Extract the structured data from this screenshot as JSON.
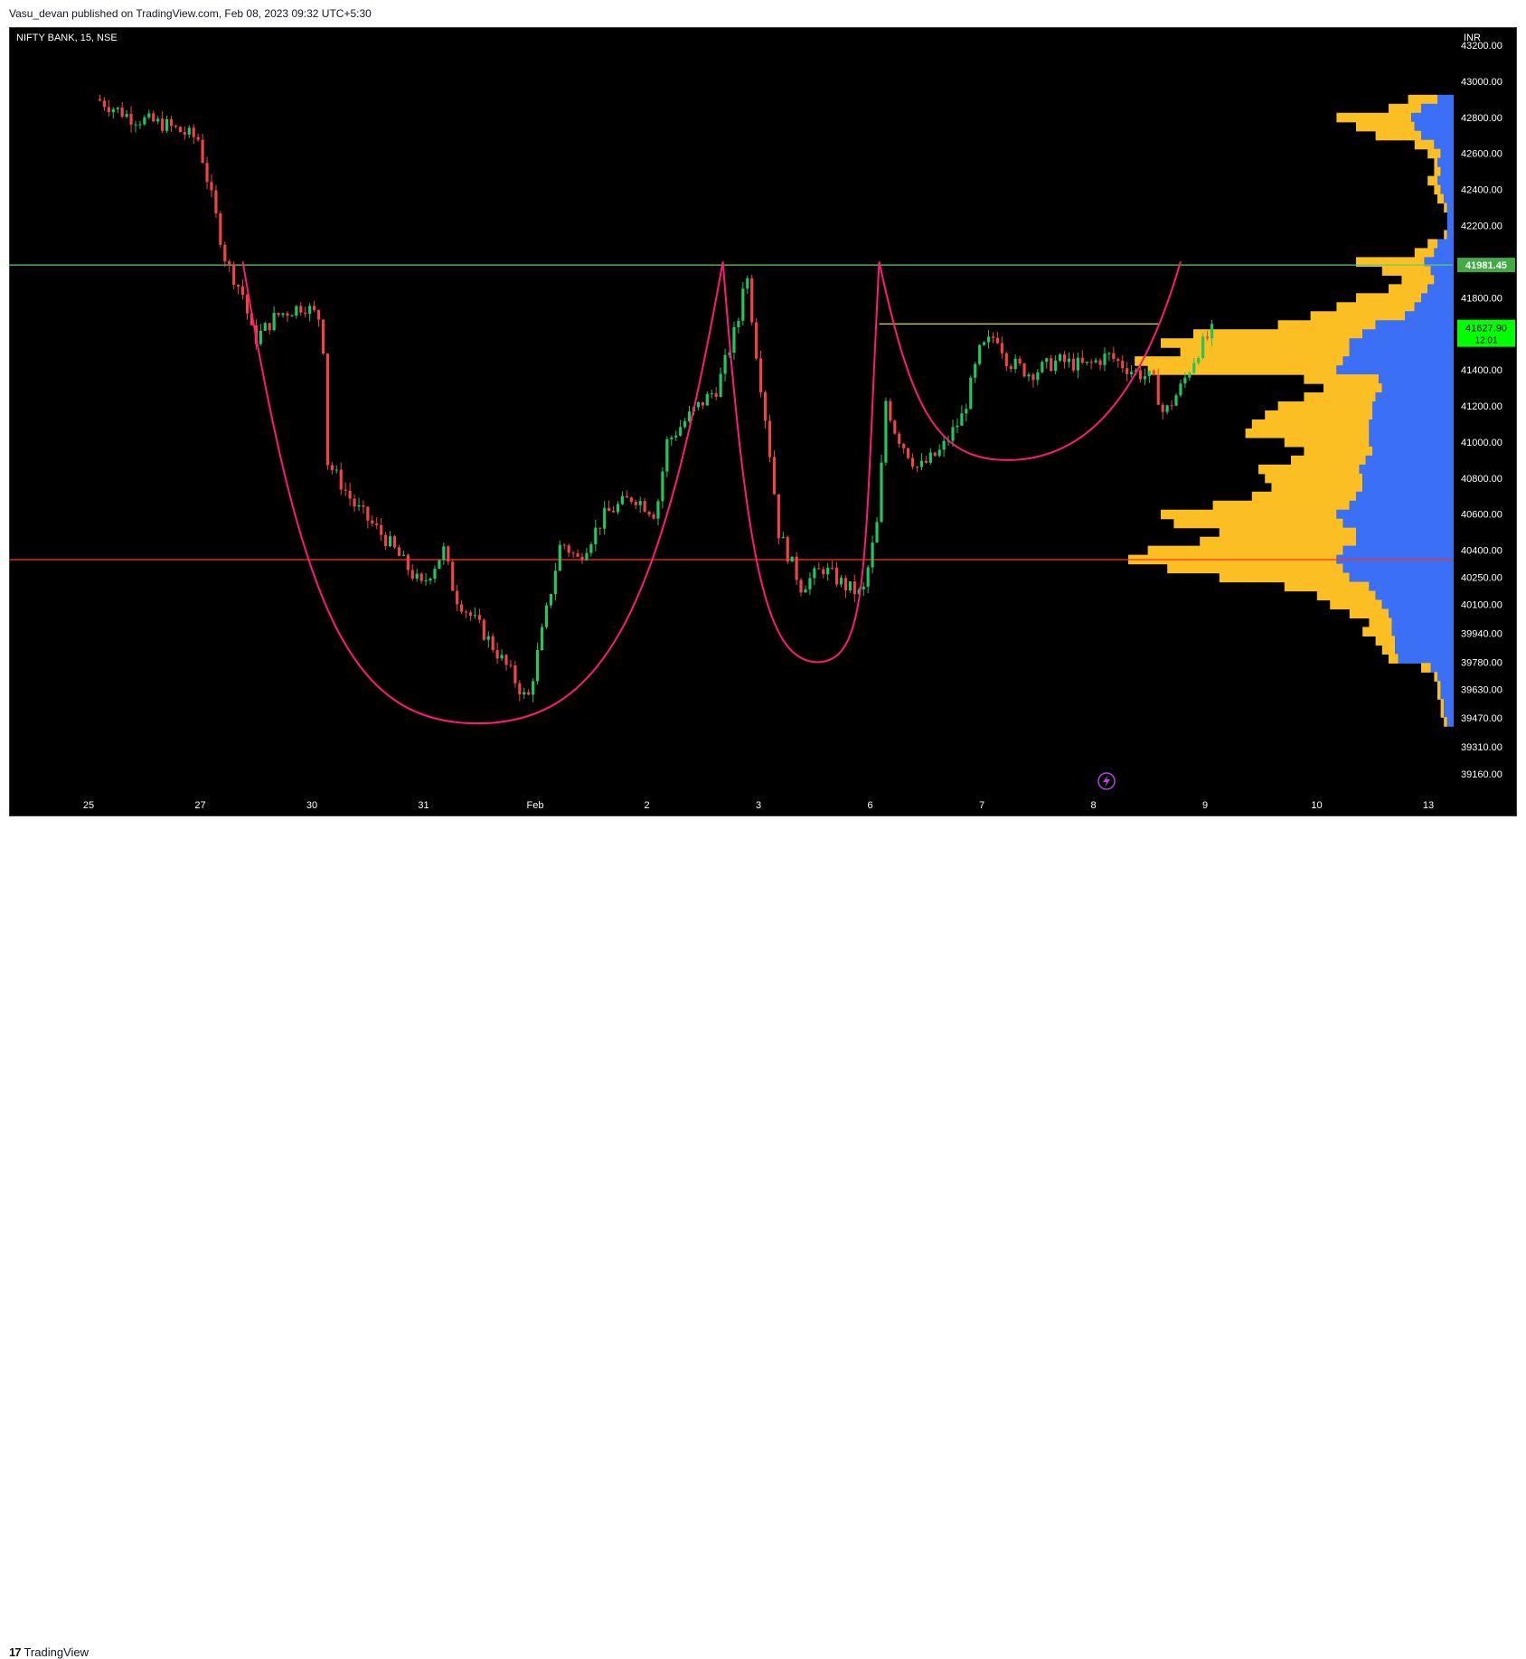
{
  "header": {
    "published": "Vasu_devan published on TradingView.com, Feb 08, 2023 09:32 UTC+5:30"
  },
  "footer": {
    "brand": "TradingView",
    "logo_mark": "17"
  },
  "colors": {
    "background": "#000000",
    "bull": "#22c55e",
    "bear": "#ef4444",
    "resistance": "#66cc66",
    "support": "#ff3322",
    "handle_line": "#e6e600",
    "pattern": "#ff1a75",
    "vp_up": "#fbbf24",
    "vp_down": "#3b6ff5",
    "last_price_bg": "#00ff00"
  },
  "chart_data": {
    "type": "candlestick",
    "symbol_label": "NIFTY BANK, 15, NSE",
    "currency": "INR",
    "x_ticks": [
      "25",
      "27",
      "30",
      "31",
      "Feb",
      "2",
      "3",
      "6",
      "7",
      "8",
      "9",
      "10",
      "13"
    ],
    "y_ticks": [
      "43200.00",
      "43000.00",
      "42800.00",
      "42600.00",
      "42400.00",
      "42200.00",
      "41800.00",
      "41400.00",
      "41200.00",
      "41000.00",
      "40800.00",
      "40600.00",
      "40400.00",
      "40250.00",
      "40100.00",
      "39940.00",
      "39780.00",
      "39630.00",
      "39470.00",
      "39310.00",
      "39160.00"
    ],
    "ylim": [
      39060,
      43290
    ],
    "horizontal_lines": [
      {
        "price": 41981.45,
        "label": "41981.45",
        "color": "#66cc66"
      },
      {
        "price": 40348,
        "label": "",
        "color": "#ff3322"
      },
      {
        "price": 41655,
        "label": "",
        "color": "#e6e600",
        "from_session": 7.0,
        "to_session": 9.5
      }
    ],
    "last_price": {
      "value": "41627.90",
      "countdown": "12:01"
    },
    "pattern_curves": [
      {
        "name": "cup1",
        "from": [
          1.3,
          42000
        ],
        "bottom": [
          3.4,
          39440
        ],
        "to": [
          5.6,
          42000
        ]
      },
      {
        "name": "cup2",
        "from": [
          5.6,
          42000
        ],
        "bottom": [
          6.45,
          39780
        ],
        "to": [
          7.0,
          42000
        ]
      },
      {
        "name": "cup3",
        "from": [
          7.0,
          42000
        ],
        "bottom": [
          8.15,
          40900
        ],
        "to": [
          9.7,
          42000
        ]
      }
    ],
    "candles_close_path": [
      [
        0.0,
        42900
      ],
      [
        0.3,
        42800
      ],
      [
        0.6,
        42760
      ],
      [
        0.9,
        42680
      ],
      [
        1.15,
        42000
      ],
      [
        1.3,
        41820
      ],
      [
        1.4,
        41560
      ],
      [
        1.6,
        41700
      ],
      [
        1.85,
        41760
      ],
      [
        2.0,
        41680
      ],
      [
        2.05,
        41300
      ],
      [
        2.05,
        40900
      ],
      [
        2.3,
        40650
      ],
      [
        2.6,
        40450
      ],
      [
        2.9,
        40200
      ],
      [
        3.1,
        40400
      ],
      [
        3.2,
        40150
      ],
      [
        3.45,
        39950
      ],
      [
        3.7,
        39720
      ],
      [
        3.85,
        39560
      ],
      [
        4.0,
        40000
      ],
      [
        4.15,
        40450
      ],
      [
        4.3,
        40350
      ],
      [
        4.55,
        40600
      ],
      [
        4.8,
        40700
      ],
      [
        5.0,
        40600
      ],
      [
        5.1,
        41000
      ],
      [
        5.35,
        41180
      ],
      [
        5.55,
        41300
      ],
      [
        5.75,
        41700
      ],
      [
        5.8,
        42000
      ],
      [
        5.9,
        41500
      ],
      [
        6.0,
        41050
      ],
      [
        6.1,
        40500
      ],
      [
        6.3,
        40200
      ],
      [
        6.5,
        40300
      ],
      [
        6.7,
        40200
      ],
      [
        6.85,
        40150
      ],
      [
        6.95,
        40450
      ],
      [
        7.0,
        40600
      ],
      [
        7.05,
        41250
      ],
      [
        7.15,
        41050
      ],
      [
        7.35,
        40850
      ],
      [
        7.55,
        40950
      ],
      [
        7.75,
        41150
      ],
      [
        7.9,
        41500
      ],
      [
        8.05,
        41600
      ],
      [
        8.15,
        41450
      ],
      [
        8.35,
        41380
      ],
      [
        8.6,
        41450
      ],
      [
        8.85,
        41420
      ],
      [
        9.05,
        41480
      ],
      [
        9.25,
        41400
      ],
      [
        9.45,
        41350
      ],
      [
        9.55,
        41150
      ],
      [
        9.7,
        41300
      ],
      [
        9.85,
        41500
      ],
      [
        10.0,
        41628
      ]
    ],
    "volume_profile": {
      "bins": [
        [
          42900,
          0.14,
          0.05
        ],
        [
          42850,
          0.2,
          0.1
        ],
        [
          42800,
          0.36,
          0.13
        ],
        [
          42750,
          0.3,
          0.12
        ],
        [
          42700,
          0.24,
          0.1
        ],
        [
          42650,
          0.12,
          0.06
        ],
        [
          42600,
          0.08,
          0.04
        ],
        [
          42550,
          0.06,
          0.05
        ],
        [
          42500,
          0.06,
          0.04
        ],
        [
          42450,
          0.08,
          0.05
        ],
        [
          42400,
          0.06,
          0.04
        ],
        [
          42350,
          0.05,
          0.03
        ],
        [
          42300,
          0.03,
          0.02
        ],
        [
          42250,
          0.02,
          0.02
        ],
        [
          42200,
          0.02,
          0.02
        ],
        [
          42150,
          0.03,
          0.02
        ],
        [
          42100,
          0.08,
          0.05
        ],
        [
          42050,
          0.12,
          0.06
        ],
        [
          42000,
          0.3,
          0.09
        ],
        [
          41950,
          0.22,
          0.07
        ],
        [
          41900,
          0.16,
          0.06
        ],
        [
          41850,
          0.2,
          0.08
        ],
        [
          41800,
          0.3,
          0.1
        ],
        [
          41750,
          0.36,
          0.12
        ],
        [
          41700,
          0.44,
          0.15
        ],
        [
          41650,
          0.54,
          0.24
        ],
        [
          41600,
          0.8,
          0.28
        ],
        [
          41550,
          0.9,
          0.32
        ],
        [
          41500,
          0.84,
          0.32
        ],
        [
          41450,
          0.98,
          0.34
        ],
        [
          41400,
          0.94,
          0.36
        ],
        [
          41350,
          0.46,
          0.23
        ],
        [
          41300,
          0.4,
          0.22
        ],
        [
          41250,
          0.46,
          0.24
        ],
        [
          41200,
          0.54,
          0.25
        ],
        [
          41150,
          0.58,
          0.25
        ],
        [
          41100,
          0.62,
          0.26
        ],
        [
          41050,
          0.64,
          0.26
        ],
        [
          41000,
          0.52,
          0.26
        ],
        [
          40950,
          0.46,
          0.25
        ],
        [
          40900,
          0.5,
          0.27
        ],
        [
          40850,
          0.6,
          0.29
        ],
        [
          40800,
          0.58,
          0.28
        ],
        [
          40750,
          0.56,
          0.28
        ],
        [
          40700,
          0.62,
          0.3
        ],
        [
          40650,
          0.74,
          0.32
        ],
        [
          40600,
          0.9,
          0.36
        ],
        [
          40550,
          0.86,
          0.34
        ],
        [
          40500,
          0.72,
          0.3
        ],
        [
          40450,
          0.78,
          0.3
        ],
        [
          40400,
          0.94,
          0.34
        ],
        [
          40350,
          1.0,
          0.36
        ],
        [
          40300,
          0.88,
          0.34
        ],
        [
          40250,
          0.72,
          0.32
        ],
        [
          40200,
          0.52,
          0.26
        ],
        [
          40150,
          0.42,
          0.24
        ],
        [
          40100,
          0.38,
          0.22
        ],
        [
          40050,
          0.32,
          0.2
        ],
        [
          40000,
          0.26,
          0.19
        ],
        [
          39950,
          0.28,
          0.19
        ],
        [
          39900,
          0.24,
          0.18
        ],
        [
          39850,
          0.22,
          0.18
        ],
        [
          39800,
          0.2,
          0.17
        ],
        [
          39750,
          0.1,
          0.07
        ],
        [
          39700,
          0.06,
          0.05
        ],
        [
          39650,
          0.05,
          0.04
        ],
        [
          39600,
          0.05,
          0.04
        ],
        [
          39550,
          0.04,
          0.03
        ],
        [
          39500,
          0.04,
          0.03
        ],
        [
          39450,
          0.03,
          0.02
        ]
      ]
    }
  }
}
